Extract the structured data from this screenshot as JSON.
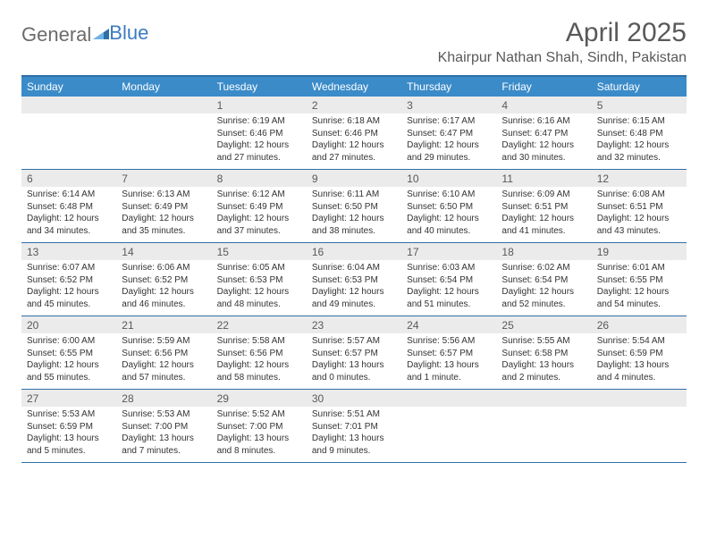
{
  "brand": {
    "part1": "General",
    "part2": "Blue"
  },
  "title": "April 2025",
  "location": "Khairpur Nathan Shah, Sindh, Pakistan",
  "colors": {
    "header_bar": "#3b8bc9",
    "rule": "#2f6fa8",
    "daynum_bg": "#ebebeb",
    "text_muted": "#595959",
    "brand_gray": "#6b6b6b",
    "brand_blue": "#3b7bbf"
  },
  "dow": [
    "Sunday",
    "Monday",
    "Tuesday",
    "Wednesday",
    "Thursday",
    "Friday",
    "Saturday"
  ],
  "weeks": [
    [
      {
        "n": "",
        "d": ""
      },
      {
        "n": "",
        "d": ""
      },
      {
        "n": "1",
        "d": "Sunrise: 6:19 AM\nSunset: 6:46 PM\nDaylight: 12 hours and 27 minutes."
      },
      {
        "n": "2",
        "d": "Sunrise: 6:18 AM\nSunset: 6:46 PM\nDaylight: 12 hours and 27 minutes."
      },
      {
        "n": "3",
        "d": "Sunrise: 6:17 AM\nSunset: 6:47 PM\nDaylight: 12 hours and 29 minutes."
      },
      {
        "n": "4",
        "d": "Sunrise: 6:16 AM\nSunset: 6:47 PM\nDaylight: 12 hours and 30 minutes."
      },
      {
        "n": "5",
        "d": "Sunrise: 6:15 AM\nSunset: 6:48 PM\nDaylight: 12 hours and 32 minutes."
      }
    ],
    [
      {
        "n": "6",
        "d": "Sunrise: 6:14 AM\nSunset: 6:48 PM\nDaylight: 12 hours and 34 minutes."
      },
      {
        "n": "7",
        "d": "Sunrise: 6:13 AM\nSunset: 6:49 PM\nDaylight: 12 hours and 35 minutes."
      },
      {
        "n": "8",
        "d": "Sunrise: 6:12 AM\nSunset: 6:49 PM\nDaylight: 12 hours and 37 minutes."
      },
      {
        "n": "9",
        "d": "Sunrise: 6:11 AM\nSunset: 6:50 PM\nDaylight: 12 hours and 38 minutes."
      },
      {
        "n": "10",
        "d": "Sunrise: 6:10 AM\nSunset: 6:50 PM\nDaylight: 12 hours and 40 minutes."
      },
      {
        "n": "11",
        "d": "Sunrise: 6:09 AM\nSunset: 6:51 PM\nDaylight: 12 hours and 41 minutes."
      },
      {
        "n": "12",
        "d": "Sunrise: 6:08 AM\nSunset: 6:51 PM\nDaylight: 12 hours and 43 minutes."
      }
    ],
    [
      {
        "n": "13",
        "d": "Sunrise: 6:07 AM\nSunset: 6:52 PM\nDaylight: 12 hours and 45 minutes."
      },
      {
        "n": "14",
        "d": "Sunrise: 6:06 AM\nSunset: 6:52 PM\nDaylight: 12 hours and 46 minutes."
      },
      {
        "n": "15",
        "d": "Sunrise: 6:05 AM\nSunset: 6:53 PM\nDaylight: 12 hours and 48 minutes."
      },
      {
        "n": "16",
        "d": "Sunrise: 6:04 AM\nSunset: 6:53 PM\nDaylight: 12 hours and 49 minutes."
      },
      {
        "n": "17",
        "d": "Sunrise: 6:03 AM\nSunset: 6:54 PM\nDaylight: 12 hours and 51 minutes."
      },
      {
        "n": "18",
        "d": "Sunrise: 6:02 AM\nSunset: 6:54 PM\nDaylight: 12 hours and 52 minutes."
      },
      {
        "n": "19",
        "d": "Sunrise: 6:01 AM\nSunset: 6:55 PM\nDaylight: 12 hours and 54 minutes."
      }
    ],
    [
      {
        "n": "20",
        "d": "Sunrise: 6:00 AM\nSunset: 6:55 PM\nDaylight: 12 hours and 55 minutes."
      },
      {
        "n": "21",
        "d": "Sunrise: 5:59 AM\nSunset: 6:56 PM\nDaylight: 12 hours and 57 minutes."
      },
      {
        "n": "22",
        "d": "Sunrise: 5:58 AM\nSunset: 6:56 PM\nDaylight: 12 hours and 58 minutes."
      },
      {
        "n": "23",
        "d": "Sunrise: 5:57 AM\nSunset: 6:57 PM\nDaylight: 13 hours and 0 minutes."
      },
      {
        "n": "24",
        "d": "Sunrise: 5:56 AM\nSunset: 6:57 PM\nDaylight: 13 hours and 1 minute."
      },
      {
        "n": "25",
        "d": "Sunrise: 5:55 AM\nSunset: 6:58 PM\nDaylight: 13 hours and 2 minutes."
      },
      {
        "n": "26",
        "d": "Sunrise: 5:54 AM\nSunset: 6:59 PM\nDaylight: 13 hours and 4 minutes."
      }
    ],
    [
      {
        "n": "27",
        "d": "Sunrise: 5:53 AM\nSunset: 6:59 PM\nDaylight: 13 hours and 5 minutes."
      },
      {
        "n": "28",
        "d": "Sunrise: 5:53 AM\nSunset: 7:00 PM\nDaylight: 13 hours and 7 minutes."
      },
      {
        "n": "29",
        "d": "Sunrise: 5:52 AM\nSunset: 7:00 PM\nDaylight: 13 hours and 8 minutes."
      },
      {
        "n": "30",
        "d": "Sunrise: 5:51 AM\nSunset: 7:01 PM\nDaylight: 13 hours and 9 minutes."
      },
      {
        "n": "",
        "d": ""
      },
      {
        "n": "",
        "d": ""
      },
      {
        "n": "",
        "d": ""
      }
    ]
  ]
}
